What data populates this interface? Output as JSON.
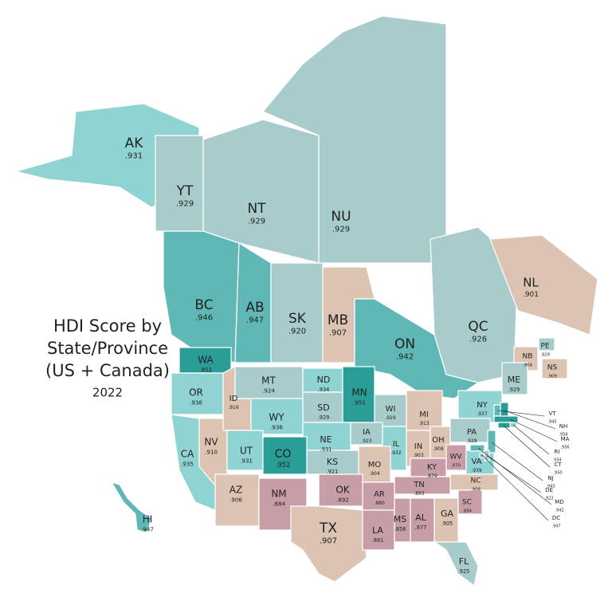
{
  "title": [
    "HDI Score by",
    "State/Province",
    "(US + Canada)"
  ],
  "year": "2022",
  "regions": [
    {
      "name": "AK",
      "value": ".931",
      "color": "#8fd3d3"
    },
    {
      "name": "YT",
      "value": ".929",
      "color": "#a8cccc"
    },
    {
      "name": "NU",
      "value": ".929",
      "color": "#a8cccc"
    },
    {
      "name": "NT",
      "value": ".929",
      "color": "#a8cccc"
    },
    {
      "name": "BC",
      "value": ".946",
      "color": "#5fb8b6"
    },
    {
      "name": "AB",
      "value": ".947",
      "color": "#5fb8b6"
    },
    {
      "name": "SK",
      "value": ".920",
      "color": "#a8cccc"
    },
    {
      "name": "MB",
      "value": ".907",
      "color": "#dcc3b2"
    },
    {
      "name": "QC",
      "value": ".926",
      "color": "#a8cccc"
    },
    {
      "name": "ON",
      "value": ".942",
      "color": "#5fb8b6"
    },
    {
      "name": "NL",
      "value": ".901",
      "color": "#dcc3b2"
    },
    {
      "name": "NB",
      "value": ".904",
      "color": "#dcc3b2"
    },
    {
      "name": "PE",
      "value": ".929",
      "color": "#a8cccc"
    },
    {
      "name": "NS",
      "value": ".909",
      "color": "#dcc3b2"
    },
    {
      "name": "WA",
      "value": ".952",
      "color": "#2a9d96"
    },
    {
      "name": "OR",
      "value": ".938",
      "color": "#8fd3d3"
    },
    {
      "name": "CA",
      "value": ".935",
      "color": "#8fd3d3"
    },
    {
      "name": "NV",
      "value": ".910",
      "color": "#dcc3b2"
    },
    {
      "name": "ID",
      "value": ".916",
      "color": "#dcc3b2"
    },
    {
      "name": "MT",
      "value": ".924",
      "color": "#a8cccc"
    },
    {
      "name": "ND",
      "value": ".934",
      "color": "#8fd3d3"
    },
    {
      "name": "MN",
      "value": ".951",
      "color": "#2a9d96"
    },
    {
      "name": "WI",
      "value": ".929",
      "color": "#a8cccc"
    },
    {
      "name": "MI",
      "value": ".913",
      "color": "#dcc3b2"
    },
    {
      "name": "NY",
      "value": ".937",
      "color": "#8fd3d3"
    },
    {
      "name": "ME",
      "value": ".929",
      "color": "#a8cccc"
    },
    {
      "name": "SD",
      "value": ".929",
      "color": "#a8cccc"
    },
    {
      "name": "WY",
      "value": ".936",
      "color": "#8fd3d3"
    },
    {
      "name": "NE",
      "value": ".931",
      "color": "#8fd3d3"
    },
    {
      "name": "IA",
      "value": ".923",
      "color": "#a8cccc"
    },
    {
      "name": "IL",
      "value": ".932",
      "color": "#8fd3d3"
    },
    {
      "name": "IN",
      "value": ".903",
      "color": "#dcc3b2"
    },
    {
      "name": "OH",
      "value": ".908",
      "color": "#dcc3b2"
    },
    {
      "name": "PA",
      "value": ".928",
      "color": "#a8cccc"
    },
    {
      "name": "UT",
      "value": ".931",
      "color": "#8fd3d3"
    },
    {
      "name": "CO",
      "value": ".952",
      "color": "#2a9d96"
    },
    {
      "name": "KS",
      "value": ".921",
      "color": "#a8cccc"
    },
    {
      "name": "MO",
      "value": ".904",
      "color": "#dcc3b2"
    },
    {
      "name": "KY",
      "value": ".879",
      "color": "#c79ea6"
    },
    {
      "name": "WV",
      "value": ".870",
      "color": "#c79ea6"
    },
    {
      "name": "VA",
      "value": ".939",
      "color": "#8fd3d3"
    },
    {
      "name": "NC",
      "value": ".908",
      "color": "#dcc3b2"
    },
    {
      "name": "TN",
      "value": ".893",
      "color": "#c79ea6"
    },
    {
      "name": "AR",
      "value": ".880",
      "color": "#c79ea6"
    },
    {
      "name": "OK",
      "value": ".892",
      "color": "#c79ea6"
    },
    {
      "name": "AZ",
      "value": ".906",
      "color": "#dcc3b2"
    },
    {
      "name": "NM",
      "value": ".884",
      "color": "#c79ea6"
    },
    {
      "name": "TX",
      "value": ".907",
      "color": "#dcc3b2"
    },
    {
      "name": "LA",
      "value": ".881",
      "color": "#c79ea6"
    },
    {
      "name": "MS",
      "value": ".858",
      "color": "#c79ea6"
    },
    {
      "name": "AL",
      "value": ".877",
      "color": "#c79ea6"
    },
    {
      "name": "GA",
      "value": ".905",
      "color": "#dcc3b2"
    },
    {
      "name": "SC",
      "value": ".894",
      "color": "#c79ea6"
    },
    {
      "name": "FL",
      "value": ".925",
      "color": "#a8cccc"
    },
    {
      "name": "HI",
      "value": ".947",
      "color": "#5fb8b6"
    },
    {
      "name": "VT",
      "value": ".945",
      "color": "#5fb8b6"
    },
    {
      "name": "NH",
      "value": ".956",
      "color": "#2a9d96"
    },
    {
      "name": "MA",
      "value": ".956",
      "color": "#2a9d96"
    },
    {
      "name": "RI",
      "value": ".934",
      "color": "#8fd3d3"
    },
    {
      "name": "CT",
      "value": ".950",
      "color": "#2a9d96"
    },
    {
      "name": "NJ",
      "value": ".943",
      "color": "#5fb8b6"
    },
    {
      "name": "DE",
      "value": ".922",
      "color": "#a8cccc"
    },
    {
      "name": "MD",
      "value": ".942",
      "color": "#5fb8b6"
    },
    {
      "name": "DC",
      "value": ".947",
      "color": "#5fb8b6"
    }
  ]
}
